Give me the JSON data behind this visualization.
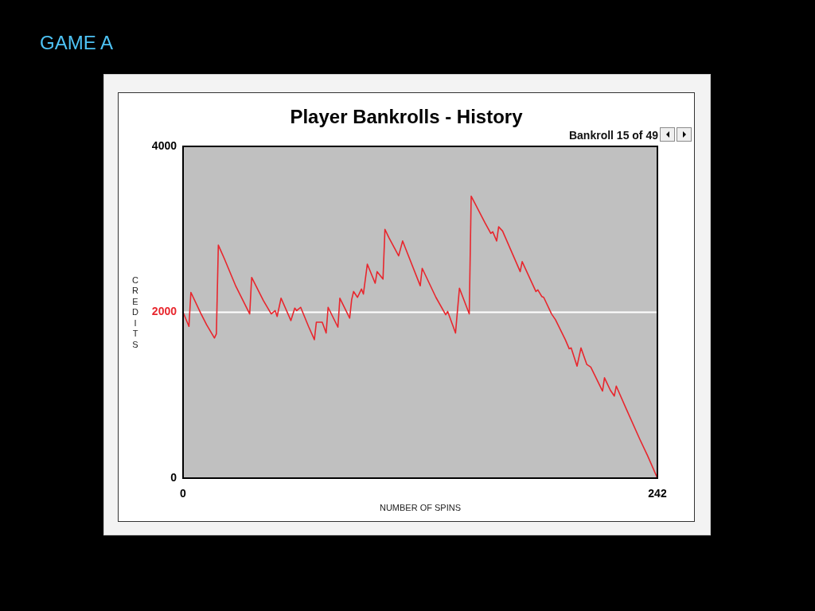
{
  "chart_data": {
    "type": "line",
    "title": "Player Bankrolls - History",
    "xlabel": "NUMBER OF SPINS",
    "ylabel": "CREDITS",
    "annotations": [
      "GAME A",
      "Bankroll 15 of 49"
    ],
    "x": [
      0,
      3,
      4,
      9,
      12,
      16,
      17,
      18,
      21,
      27,
      34,
      35,
      41,
      45,
      47,
      48,
      50,
      55,
      57,
      58,
      60,
      64,
      67,
      68,
      71,
      73,
      74,
      79,
      80,
      85,
      86,
      87,
      89,
      91,
      92,
      94,
      98,
      99,
      102,
      103,
      105,
      110,
      112,
      121,
      122,
      129,
      134,
      135,
      139,
      140,
      141,
      146,
      147,
      154,
      157,
      158,
      160,
      161,
      163,
      172,
      173,
      180,
      181,
      183,
      184,
      188,
      190,
      195,
      197,
      198,
      201,
      203,
      206,
      208,
      214,
      215,
      218,
      220,
      221,
      226,
      233,
      237,
      242
    ],
    "series": [
      {
        "color": "#e8262d",
        "values": [
          2000,
          1830,
          2240,
          1990,
          1850,
          1690,
          1740,
          2810,
          2650,
          2310,
          1980,
          2420,
          2140,
          1980,
          2020,
          1950,
          2170,
          1900,
          2050,
          2020,
          2060,
          1830,
          1670,
          1880,
          1880,
          1750,
          2060,
          1820,
          2170,
          1930,
          2150,
          2250,
          2180,
          2280,
          2220,
          2580,
          2350,
          2490,
          2400,
          3000,
          2900,
          2680,
          2860,
          2320,
          2530,
          2180,
          1970,
          2010,
          1750,
          2020,
          2290,
          1980,
          3400,
          3080,
          2950,
          2970,
          2860,
          3030,
          2980,
          2490,
          2610,
          2250,
          2270,
          2190,
          2180,
          1980,
          1910,
          1670,
          1560,
          1570,
          1350,
          1570,
          1370,
          1340,
          1050,
          1210,
          1060,
          990,
          1110,
          840,
          470,
          270,
          0
        ]
      }
    ],
    "xlim": [
      0,
      242
    ],
    "xticks": [
      0,
      242
    ],
    "ylim": [
      0,
      4000
    ],
    "yticks": [
      0,
      2000,
      4000
    ],
    "ref_lines": [
      {
        "axis": "y",
        "value": 2000,
        "color": "#ffffff"
      }
    ],
    "legend": false,
    "marker": "none",
    "line_style": "solid"
  }
}
